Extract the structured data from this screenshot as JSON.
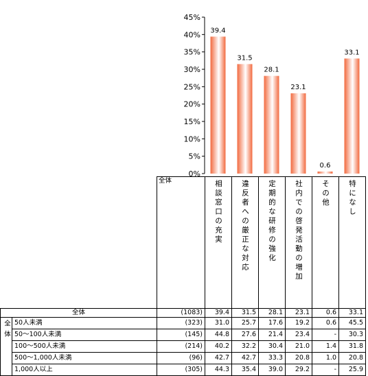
{
  "chart_data": {
    "type": "bar",
    "categories": [
      "相談窓口の充実",
      "違反者への厳正な対応",
      "定期的な研修の強化",
      "社内での啓発活動の増加",
      "その他",
      "特になし"
    ],
    "values": [
      39.4,
      31.5,
      28.1,
      23.1,
      0.6,
      33.1
    ],
    "value_labels": [
      "39.4",
      "31.5",
      "28.1",
      "23.1",
      "0.6",
      "33.1"
    ],
    "y_ticks": [
      "0%",
      "5%",
      "10%",
      "15%",
      "20%",
      "25%",
      "30%",
      "35%",
      "40%",
      "45%"
    ],
    "ylim": [
      0,
      45
    ],
    "grid": false,
    "bar_gradient": [
      "#f26a3f",
      "#ffffff"
    ]
  },
  "table": {
    "header_label": "全体",
    "overall": {
      "label": "全体",
      "n": "(1083)",
      "values": [
        "39.4",
        "31.5",
        "28.1",
        "23.1",
        "0.6",
        "33.1"
      ]
    },
    "group_label": "全体",
    "rows": [
      {
        "label": "50人未満",
        "n": "(323)",
        "values": [
          "31.0",
          "25.7",
          "17.6",
          "19.2",
          "0.6",
          "45.5"
        ]
      },
      {
        "label": "50～100人未満",
        "n": "(145)",
        "values": [
          "44.8",
          "27.6",
          "21.4",
          "23.4",
          "-",
          "30.3"
        ]
      },
      {
        "label": "100～500人未満",
        "n": "(214)",
        "values": [
          "40.2",
          "32.2",
          "30.4",
          "21.0",
          "1.4",
          "31.8"
        ]
      },
      {
        "label": "500～1,000人未満",
        "n": "(96)",
        "values": [
          "42.7",
          "42.7",
          "33.3",
          "20.8",
          "1.0",
          "20.8"
        ]
      },
      {
        "label": "1,000人以上",
        "n": "(305)",
        "values": [
          "44.3",
          "35.4",
          "39.0",
          "29.2",
          "-",
          "25.9"
        ]
      }
    ]
  }
}
